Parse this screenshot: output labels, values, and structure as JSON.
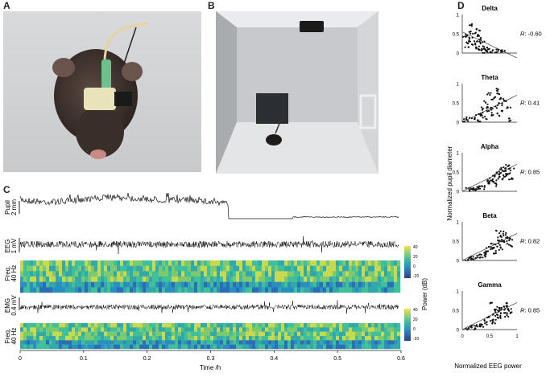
{
  "panels": {
    "a": "A",
    "b": "B",
    "c": "C",
    "d": "D"
  },
  "panel_c": {
    "pupil_label": "Pupil",
    "pupil_scale": "2 mm",
    "eeg_label": "EEG",
    "eeg_scale": "1 mV",
    "freq1_label": "Freq.",
    "freq1_scale": "40 Hz",
    "emg_label": "EMG",
    "emg_scale": "0.4 mV",
    "freq2_label": "Freq.",
    "freq2_scale": "40 Hz",
    "power_label": "Power (dB)",
    "cbar1_ticks": [
      "40",
      "20",
      "0",
      "-20"
    ],
    "cbar2_ticks": [
      "40",
      "20",
      "0",
      "-20"
    ],
    "x_ticks": [
      "0",
      "0.1",
      "0.2",
      "0.3",
      "0.4",
      "0.5",
      "0.6"
    ],
    "x_label": "Time /h",
    "colors": {
      "trace": "#111111",
      "spec_low": "#3b5aa0",
      "spec_mid": "#2fa88f",
      "spec_high": "#e8d43a"
    }
  },
  "chart_data": [
    {
      "type": "scatter",
      "title": "Delta",
      "r_label": "R",
      "r_value": ": -0.60",
      "y_ticks": [
        "1",
        "0.5",
        "0"
      ],
      "xlim": [
        0,
        1
      ],
      "ylim": [
        0,
        1
      ],
      "points": [
        [
          0.05,
          0.42
        ],
        [
          0.1,
          0.5
        ],
        [
          0.15,
          0.38
        ],
        [
          0.2,
          0.55
        ],
        [
          0.25,
          0.3
        ],
        [
          0.3,
          0.45
        ],
        [
          0.35,
          0.2
        ],
        [
          0.4,
          0.12
        ],
        [
          0.45,
          0.05
        ],
        [
          0.5,
          0.08
        ],
        [
          0.55,
          0.04
        ],
        [
          0.6,
          0.06
        ],
        [
          0.18,
          0.7
        ],
        [
          0.22,
          0.25
        ],
        [
          0.28,
          0.6
        ],
        [
          0.33,
          0.35
        ],
        [
          0.12,
          0.28
        ],
        [
          0.08,
          0.2
        ],
        [
          0.38,
          0.05
        ],
        [
          0.42,
          0.1
        ],
        [
          0.7,
          0.05
        ],
        [
          0.75,
          0.03
        ],
        [
          0.26,
          0.15
        ],
        [
          0.3,
          0.1
        ],
        [
          0.36,
          0.3
        ]
      ]
    },
    {
      "type": "scatter",
      "title": "Theta",
      "r_label": "R",
      "r_value": ": 0.41",
      "y_ticks": [
        "1",
        "0.5",
        "0"
      ],
      "xlim": [
        0,
        1
      ],
      "ylim": [
        0,
        1
      ],
      "points": [
        [
          0.05,
          0.05
        ],
        [
          0.1,
          0.08
        ],
        [
          0.2,
          0.1
        ],
        [
          0.3,
          0.06
        ],
        [
          0.4,
          0.35
        ],
        [
          0.45,
          0.5
        ],
        [
          0.5,
          0.3
        ],
        [
          0.55,
          0.6
        ],
        [
          0.6,
          0.4
        ],
        [
          0.65,
          0.7
        ],
        [
          0.7,
          0.45
        ],
        [
          0.75,
          0.3
        ],
        [
          0.8,
          0.55
        ],
        [
          0.35,
          0.2
        ],
        [
          0.5,
          0.75
        ],
        [
          0.58,
          0.2
        ],
        [
          0.62,
          0.85
        ],
        [
          0.68,
          0.2
        ],
        [
          0.72,
          0.62
        ],
        [
          0.42,
          0.12
        ],
        [
          0.85,
          0.35
        ],
        [
          0.9,
          0.08
        ],
        [
          0.3,
          0.2
        ],
        [
          0.48,
          0.4
        ]
      ]
    },
    {
      "type": "scatter",
      "title": "Alpha",
      "r_label": "R",
      "r_value": ": 0.85",
      "y_ticks": [
        "1",
        "0.5",
        "0"
      ],
      "xlim": [
        0,
        1
      ],
      "ylim": [
        0,
        1
      ],
      "points": [
        [
          0.1,
          0.04
        ],
        [
          0.15,
          0.06
        ],
        [
          0.2,
          0.05
        ],
        [
          0.25,
          0.08
        ],
        [
          0.3,
          0.07
        ],
        [
          0.35,
          0.12
        ],
        [
          0.4,
          0.1
        ],
        [
          0.45,
          0.2
        ],
        [
          0.5,
          0.25
        ],
        [
          0.55,
          0.3
        ],
        [
          0.6,
          0.4
        ],
        [
          0.65,
          0.45
        ],
        [
          0.7,
          0.35
        ],
        [
          0.72,
          0.55
        ],
        [
          0.75,
          0.6
        ],
        [
          0.78,
          0.4
        ],
        [
          0.8,
          0.5
        ],
        [
          0.82,
          0.65
        ],
        [
          0.85,
          0.45
        ],
        [
          0.88,
          0.3
        ],
        [
          0.62,
          0.28
        ],
        [
          0.68,
          0.5
        ],
        [
          0.58,
          0.18
        ],
        [
          0.9,
          0.55
        ]
      ]
    },
    {
      "type": "scatter",
      "title": "Beta",
      "r_label": "R",
      "r_value": ": 0.82",
      "y_ticks": [
        "1",
        "0.5",
        "0"
      ],
      "xlim": [
        0,
        1
      ],
      "ylim": [
        0,
        1
      ],
      "points": [
        [
          0.1,
          0.04
        ],
        [
          0.15,
          0.06
        ],
        [
          0.2,
          0.05
        ],
        [
          0.28,
          0.08
        ],
        [
          0.32,
          0.12
        ],
        [
          0.38,
          0.1
        ],
        [
          0.42,
          0.2
        ],
        [
          0.48,
          0.28
        ],
        [
          0.52,
          0.35
        ],
        [
          0.56,
          0.45
        ],
        [
          0.6,
          0.3
        ],
        [
          0.64,
          0.55
        ],
        [
          0.68,
          0.4
        ],
        [
          0.72,
          0.6
        ],
        [
          0.75,
          0.5
        ],
        [
          0.78,
          0.7
        ],
        [
          0.8,
          0.45
        ],
        [
          0.84,
          0.62
        ],
        [
          0.87,
          0.38
        ],
        [
          0.9,
          0.55
        ],
        [
          0.45,
          0.15
        ],
        [
          0.58,
          0.22
        ],
        [
          0.7,
          0.32
        ],
        [
          0.66,
          0.75
        ]
      ]
    },
    {
      "type": "scatter",
      "title": "Gamma",
      "r_label": "R",
      "r_value": ": 0.85",
      "y_ticks": [
        "1",
        "0.5",
        "0"
      ],
      "x_ticks": [
        "0",
        "0.5",
        "1"
      ],
      "xlim": [
        0,
        1
      ],
      "ylim": [
        0,
        1
      ],
      "points": [
        [
          0.1,
          0.04
        ],
        [
          0.15,
          0.05
        ],
        [
          0.2,
          0.06
        ],
        [
          0.25,
          0.05
        ],
        [
          0.3,
          0.08
        ],
        [
          0.35,
          0.1
        ],
        [
          0.4,
          0.15
        ],
        [
          0.45,
          0.2
        ],
        [
          0.5,
          0.3
        ],
        [
          0.55,
          0.25
        ],
        [
          0.6,
          0.4
        ],
        [
          0.62,
          0.5
        ],
        [
          0.65,
          0.35
        ],
        [
          0.68,
          0.55
        ],
        [
          0.7,
          0.45
        ],
        [
          0.72,
          0.6
        ],
        [
          0.75,
          0.42
        ],
        [
          0.78,
          0.65
        ],
        [
          0.8,
          0.5
        ],
        [
          0.82,
          0.38
        ],
        [
          0.85,
          0.58
        ],
        [
          0.52,
          0.7
        ],
        [
          0.58,
          0.18
        ],
        [
          0.66,
          0.28
        ],
        [
          0.88,
          0.45
        ]
      ]
    }
  ],
  "panel_d": {
    "y_axis_label": "Normalized pupil diameter",
    "x_axis_label": "Normalized EEG power"
  }
}
